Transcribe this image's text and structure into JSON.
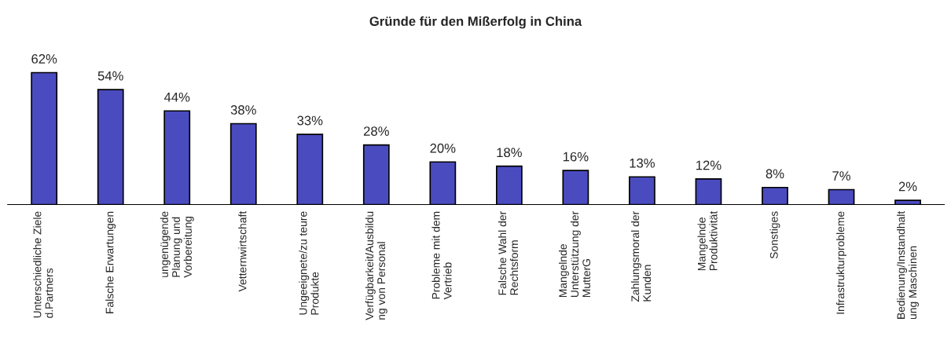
{
  "chart_data": {
    "type": "bar",
    "title": "Gründe für den Mißerfolg in China",
    "categories": [
      "Unterschiedliche Ziele\nd.Partners",
      "Falsche Erwartungen",
      "ungenügende\nPlanung und\nVorbereitung",
      "Vetternwirtschaft",
      "Ungeeignete/zu teure\nProdukte",
      "Verfügbarkeit/Ausbildu\nng von Personal",
      "Probleme mit dem\nVertrieb",
      "Falsche Wahl der\nRechtsform",
      "Mangelnde\nUnterstützung der\nMutterG",
      "Zahlungsmoral der\nKunden",
      "Mangelnde\nProduktivität",
      "Sonstiges",
      "Infrastrukturprobleme",
      "Bedienung/Instandhalt\nung Maschinen"
    ],
    "values": [
      62,
      54,
      44,
      38,
      33,
      28,
      20,
      18,
      16,
      13,
      12,
      8,
      7,
      2
    ],
    "value_labels": [
      "62%",
      "54%",
      "44%",
      "38%",
      "33%",
      "28%",
      "20%",
      "18%",
      "16%",
      "13%",
      "12%",
      "8%",
      "7%",
      "2%"
    ],
    "color": "#4b4bc0",
    "grid": false,
    "legend": false
  }
}
